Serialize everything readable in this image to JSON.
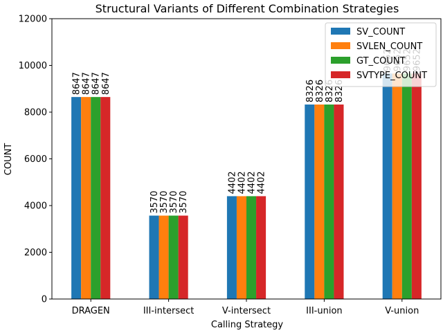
{
  "chart_data": {
    "type": "bar",
    "title": "Structural Variants of Different Combination Strategies",
    "xlabel": "Calling Strategy",
    "ylabel": "COUNT",
    "ylim": [
      0,
      12000
    ],
    "yticks": [
      0,
      2000,
      4000,
      6000,
      8000,
      10000,
      12000
    ],
    "categories": [
      "DRAGEN",
      "III-intersect",
      "V-intersect",
      "III-union",
      "V-union"
    ],
    "series": [
      {
        "name": "SV_COUNT",
        "color": "#1f77b4",
        "values": [
          8647,
          3570,
          4402,
          8326,
          9652
        ]
      },
      {
        "name": "SVLEN_COUNT",
        "color": "#ff7f0e",
        "values": [
          8647,
          3570,
          4402,
          8326,
          9652
        ]
      },
      {
        "name": "GT_COUNT",
        "color": "#2ca02c",
        "values": [
          8647,
          3570,
          4402,
          8326,
          9652
        ]
      },
      {
        "name": "SVTYPE_COUNT",
        "color": "#d62728",
        "values": [
          8647,
          3570,
          4402,
          8326,
          9652
        ]
      }
    ],
    "legend_position": "top-right",
    "grid": false
  }
}
